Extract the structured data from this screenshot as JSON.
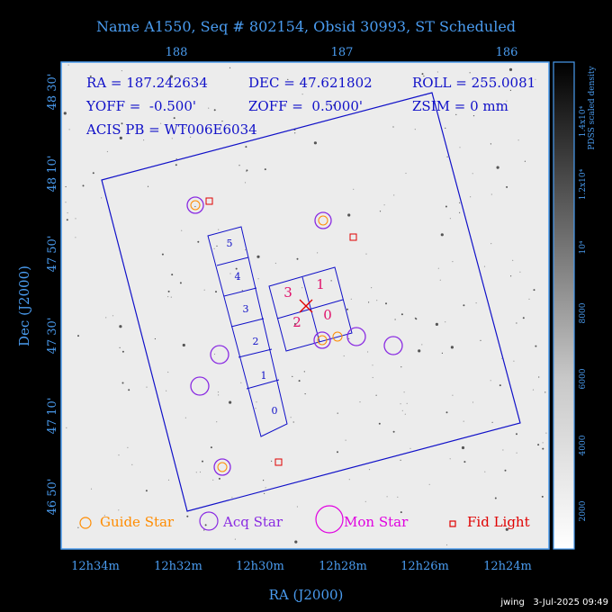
{
  "title": "Name A1550, Seq # 802154, Obsid 30993, ST Scheduled",
  "footer": "jwing   3-Jul-2025 09:49",
  "info": {
    "ra": "RA = 187.242634",
    "dec": "DEC = 47.621802",
    "roll": "ROLL = 255.0081",
    "yoff": "YOFF =  -0.500'",
    "zoff": "ZOFF =  0.5000'",
    "zsim": "ZSIM = 0 mm",
    "acis": "ACIS PB = WT006E6034"
  },
  "legend": {
    "guide": "Guide Star",
    "acq": "Acq Star",
    "mon": "Mon Star",
    "fid": "Fid Light"
  },
  "colorbar": {
    "label1": "1.4x10⁴",
    "label2": "PDSS scaled density",
    "ticks": [
      "2000",
      "4000",
      "6000",
      "8000",
      "10⁴",
      "1.2x10⁴",
      "1.4x10⁴"
    ]
  },
  "colors": {
    "axis": "#4a9cf0",
    "overlay": "#1010c8",
    "guide": "#ff8c00",
    "acq": "#8a2be2",
    "mon": "#e000e0",
    "fid": "#e00000",
    "chips": "#e0106a"
  },
  "chart_data": {
    "type": "scatter",
    "xlabel": "RA (J2000)",
    "ylabel": "Dec (J2000)",
    "x_ticks_bottom": [
      "12h34m",
      "12h32m",
      "12h30m",
      "12h28m",
      "12h26m",
      "12h24m"
    ],
    "x_ticks_top": [
      "188",
      "187",
      "186"
    ],
    "y_ticks": [
      "46 50'",
      "47 10'",
      "47 30'",
      "47 50'",
      "48 10'",
      "48 30'"
    ],
    "chip_labels": [
      "0",
      "1",
      "2",
      "3",
      "4",
      "5"
    ],
    "center_chips": [
      "0",
      "1",
      "2",
      "3"
    ]
  }
}
